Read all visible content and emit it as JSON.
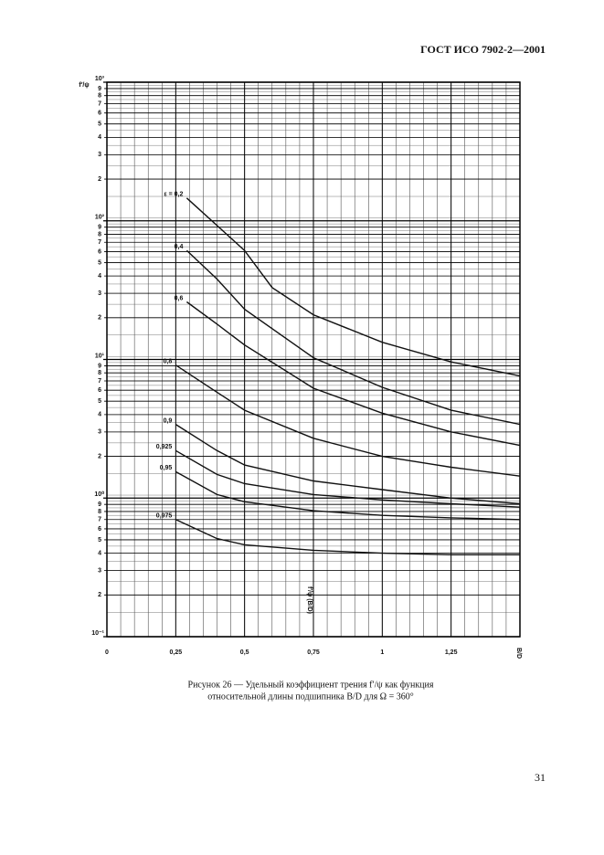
{
  "header": "ГОСТ ИСО 7902-2—2001",
  "caption": [
    "Рисунок 26 — Удельный коэффициент трения f′/ψ как функция",
    "относительной длины подшипника B/D для Ω = 360°"
  ],
  "page_number": "31",
  "chart_data": {
    "type": "line",
    "y_log": true,
    "grid": true,
    "color": "#111111",
    "y_label": "f′/ψ",
    "x_label": "B/D",
    "annotation": "f′/ψ (B/D)",
    "xlim": [
      0,
      1.5
    ],
    "ylim": [
      0.1,
      1000
    ],
    "xticks": [
      0,
      {
        "value": 0.25,
        "label": "0,25"
      },
      {
        "value": 0.5,
        "label": "0,5"
      },
      {
        "value": 0.75,
        "label": "0,75"
      },
      1,
      {
        "value": 1.25,
        "label": "1,25"
      }
    ],
    "yticks": [
      {
        "value": 0.1,
        "label": "10⁻¹"
      },
      {
        "value": 1,
        "label": "10⁰"
      },
      {
        "value": 10,
        "label": "10¹"
      },
      {
        "value": 100,
        "label": "10²"
      },
      {
        "value": 1000,
        "label": "10³"
      }
    ],
    "yminor": [
      {
        "value": 0.2,
        "label": "2"
      },
      {
        "value": 0.3,
        "label": "3"
      },
      {
        "value": 0.4,
        "label": "4"
      },
      {
        "value": 0.5,
        "label": "5"
      },
      {
        "value": 0.6,
        "label": "6"
      },
      {
        "value": 0.7,
        "label": "7"
      },
      {
        "value": 0.8,
        "label": "8"
      },
      {
        "value": 0.9,
        "label": "9"
      },
      {
        "value": 2,
        "label": "2"
      },
      {
        "value": 3,
        "label": "3"
      },
      {
        "value": 4,
        "label": "4"
      },
      {
        "value": 5,
        "label": "5"
      },
      {
        "value": 6,
        "label": "6"
      },
      {
        "value": 7,
        "label": "7"
      },
      {
        "value": 8,
        "label": "8"
      },
      {
        "value": 9,
        "label": "9"
      },
      {
        "value": 20,
        "label": "2"
      },
      {
        "value": 30,
        "label": "3"
      },
      {
        "value": 40,
        "label": "4"
      },
      {
        "value": 50,
        "label": "5"
      },
      {
        "value": 60,
        "label": "6"
      },
      {
        "value": 70,
        "label": "7"
      },
      {
        "value": 80,
        "label": "8"
      },
      {
        "value": 90,
        "label": "9"
      },
      {
        "value": 200,
        "label": "2"
      },
      {
        "value": 300,
        "label": "3"
      },
      {
        "value": 400,
        "label": "4"
      },
      {
        "value": 500,
        "label": "5"
      },
      {
        "value": 600,
        "label": "6"
      },
      {
        "value": 700,
        "label": "7"
      },
      {
        "value": 800,
        "label": "8"
      },
      {
        "value": 900,
        "label": "9"
      }
    ],
    "series": [
      {
        "name": "ε = 0,2",
        "x": [
          0.29,
          0.5,
          0.6,
          0.75,
          1.0,
          1.25,
          1.5
        ],
        "values": [
          146,
          61,
          33,
          21,
          13.3,
          9.6,
          7.6
        ]
      },
      {
        "name": "0,4",
        "x": [
          0.29,
          0.4,
          0.5,
          0.75,
          1.0,
          1.25,
          1.5
        ],
        "values": [
          61,
          38,
          23,
          10.3,
          6.3,
          4.3,
          3.4
        ]
      },
      {
        "name": "0,6",
        "x": [
          0.29,
          0.4,
          0.5,
          0.75,
          1.0,
          1.25,
          1.5
        ],
        "values": [
          26,
          18,
          12.7,
          6.2,
          4.1,
          3.0,
          2.4
        ]
      },
      {
        "name": "0,8",
        "x": [
          0.25,
          0.4,
          0.5,
          0.75,
          1.0,
          1.25,
          1.5
        ],
        "values": [
          9.1,
          5.8,
          4.3,
          2.7,
          2.0,
          1.67,
          1.44
        ]
      },
      {
        "name": "0,9",
        "x": [
          0.25,
          0.4,
          0.5,
          0.75,
          1.0,
          1.25,
          1.5
        ],
        "values": [
          3.4,
          2.2,
          1.73,
          1.33,
          1.15,
          1.0,
          0.91
        ]
      },
      {
        "name": "0,925",
        "x": [
          0.25,
          0.4,
          0.5,
          0.75,
          1.0,
          1.25,
          1.5
        ],
        "values": [
          2.2,
          1.48,
          1.27,
          1.06,
          0.97,
          0.91,
          0.86
        ]
      },
      {
        "name": "0,95",
        "x": [
          0.25,
          0.4,
          0.5,
          0.75,
          1.0,
          1.25,
          1.5
        ],
        "values": [
          1.55,
          1.06,
          0.94,
          0.81,
          0.75,
          0.72,
          0.7
        ]
      },
      {
        "name": "0,975",
        "x": [
          0.25,
          0.4,
          0.5,
          0.75,
          1.0,
          1.25,
          1.5
        ],
        "values": [
          0.7,
          0.51,
          0.46,
          0.42,
          0.4,
          0.39,
          0.39
        ]
      }
    ]
  }
}
